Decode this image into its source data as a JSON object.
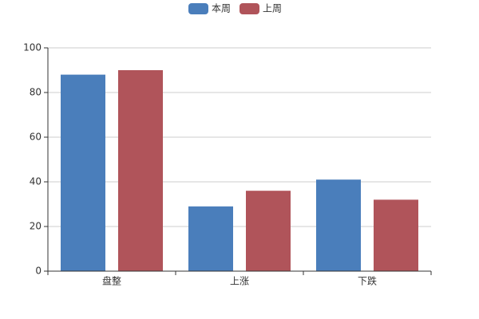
{
  "chart_data": {
    "type": "bar",
    "categories": [
      "盘整",
      "上涨",
      "下跌"
    ],
    "series": [
      {
        "name": "本周",
        "color": "#4a7ebb",
        "values": [
          88,
          29,
          41
        ]
      },
      {
        "name": "上周",
        "color": "#b0545a",
        "values": [
          90,
          36,
          32
        ]
      }
    ],
    "ylim": [
      0,
      100
    ],
    "yticks": [
      0,
      20,
      40,
      60,
      80,
      100
    ],
    "grid": true,
    "legend": "top"
  }
}
